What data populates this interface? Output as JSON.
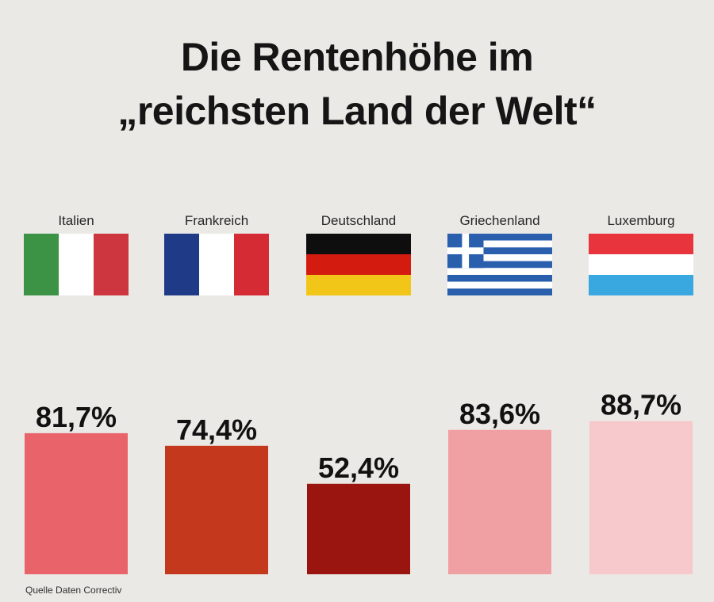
{
  "title_line1": "Die Rentenhöhe im",
  "title_line2": "„reichsten Land der Welt“",
  "source": "Quelle Daten Correctiv",
  "chart_data": {
    "type": "bar",
    "title": "Die Rentenhöhe im „reichsten Land der Welt“",
    "xlabel": "",
    "ylabel": "",
    "ylim": [
      0,
      100
    ],
    "grid": false,
    "categories": [
      "Italien",
      "Frankreich",
      "Deutschland",
      "Griechenland",
      "Luxemburg"
    ],
    "values": [
      81.7,
      74.4,
      52.4,
      83.6,
      88.7
    ],
    "data_labels": [
      "81,7%",
      "74,4%",
      "52,4%",
      "83,6%",
      "88,7%"
    ],
    "bar_colors": [
      "#e8636a",
      "#c4381d",
      "#9a1410",
      "#f09fa2",
      "#f7c9cc"
    ],
    "flag_icons": [
      "flag-italy-icon",
      "flag-france-icon",
      "flag-germany-icon",
      "flag-greece-icon",
      "flag-luxembourg-icon"
    ]
  }
}
